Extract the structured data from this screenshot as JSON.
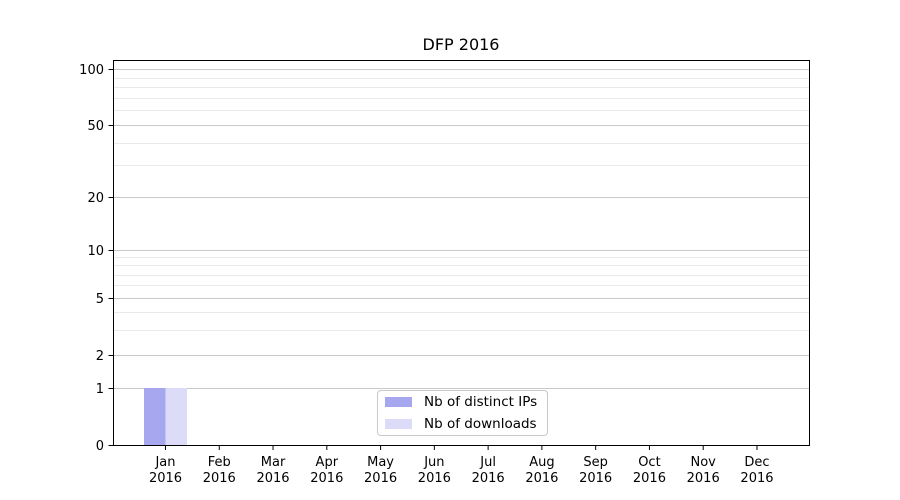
{
  "chart_data": {
    "type": "bar",
    "title": "DFP 2016",
    "categories": [
      {
        "month": "Jan",
        "year": "2016"
      },
      {
        "month": "Feb",
        "year": "2016"
      },
      {
        "month": "Mar",
        "year": "2016"
      },
      {
        "month": "Apr",
        "year": "2016"
      },
      {
        "month": "May",
        "year": "2016"
      },
      {
        "month": "Jun",
        "year": "2016"
      },
      {
        "month": "Jul",
        "year": "2016"
      },
      {
        "month": "Aug",
        "year": "2016"
      },
      {
        "month": "Sep",
        "year": "2016"
      },
      {
        "month": "Oct",
        "year": "2016"
      },
      {
        "month": "Nov",
        "year": "2016"
      },
      {
        "month": "Dec",
        "year": "2016"
      }
    ],
    "series": [
      {
        "name": "Nb of distinct IPs",
        "color": "#a7a7f0",
        "values": [
          1,
          0,
          0,
          0,
          0,
          0,
          0,
          0,
          0,
          0,
          0,
          0
        ]
      },
      {
        "name": "Nb of downloads",
        "color": "#dcdcf8",
        "values": [
          1,
          0,
          0,
          0,
          0,
          0,
          0,
          0,
          0,
          0,
          0,
          0
        ]
      }
    ],
    "yscale": "symlog",
    "ylim": [
      0,
      100
    ],
    "yticks": [
      0,
      1,
      2,
      5,
      10,
      20,
      50,
      100
    ],
    "yticks_minor": [
      3,
      4,
      6,
      7,
      8,
      9,
      30,
      40,
      60,
      70,
      80,
      90
    ],
    "grid": "horizontal",
    "legend_position": "lower center"
  },
  "colors": {
    "grid_major": "#c9c9c9",
    "grid_minor": "#eaeaea",
    "spine": "#000000",
    "text": "#000000"
  }
}
